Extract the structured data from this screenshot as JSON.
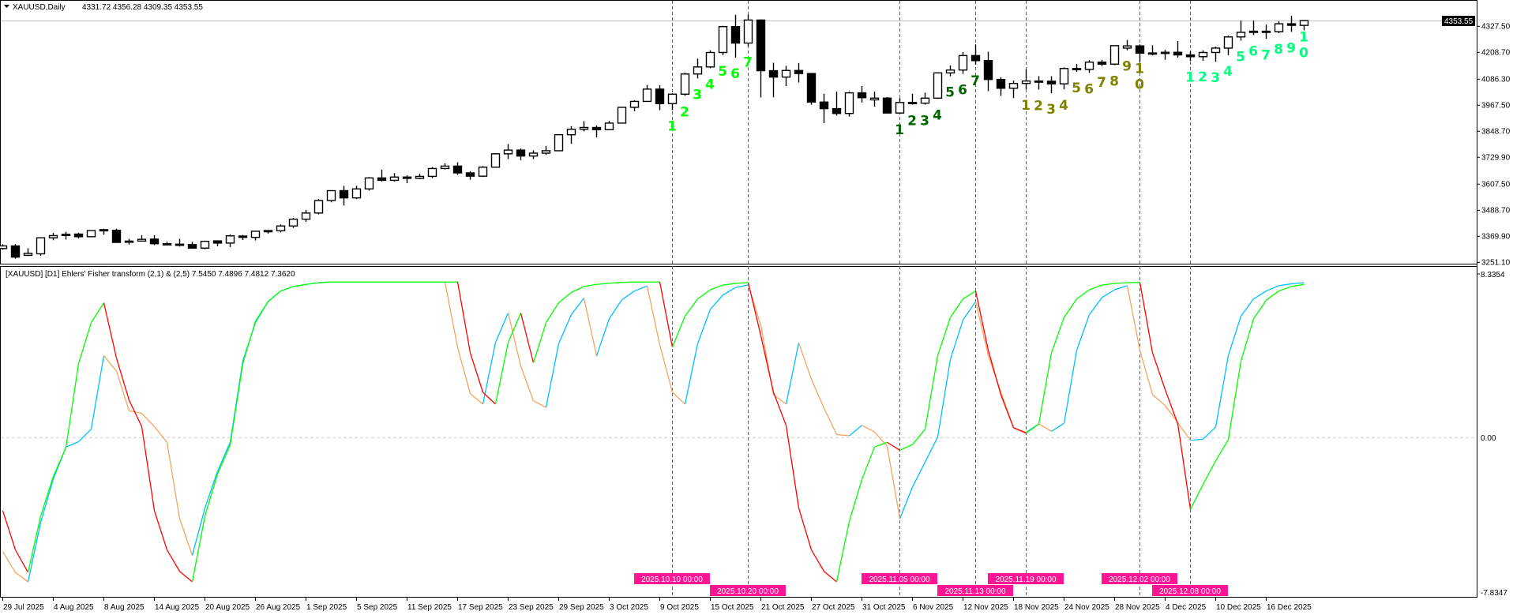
{
  "header": {
    "menu_icon": "triangle-down-icon",
    "symbol_timeframe": "XAUUSD,Daily",
    "ohlc": "4331.72 4356.28 4309.35 4353.55"
  },
  "indicator": {
    "title": "[XAUUSD] [D1] Ehlers' Fisher transform (2,1) & (2,5) 7.5450 7.4896 7.4812 7.3620"
  },
  "price_axis": {
    "current_price": "4353.55",
    "ticks": [
      "4327.50",
      "4208.70",
      "4086.30",
      "3967.50",
      "3848.70",
      "3729.90",
      "3607.50",
      "3488.70",
      "3369.90",
      "3251.10"
    ]
  },
  "indicator_axis": {
    "max": "8.3354",
    "zero": "0.00",
    "min": "-7.8347"
  },
  "time_axis": {
    "labels": [
      "29 Jul 2025",
      "4 Aug 2025",
      "8 Aug 2025",
      "14 Aug 2025",
      "20 Aug 2025",
      "26 Aug 2025",
      "1 Sep 2025",
      "5 Sep 2025",
      "11 Sep 2025",
      "17 Sep 2025",
      "23 Sep 2025",
      "29 Sep 2025",
      "3 Oct 2025",
      "9 Oct 2025",
      "15 Oct 2025",
      "21 Oct 2025",
      "27 Oct 2025",
      "31 Oct 2025",
      "6 Nov 2025",
      "12 Nov 2025",
      "18 Nov 2025",
      "24 Nov 2025",
      "28 Nov 2025",
      "4 Dec 2025",
      "10 Dec 2025",
      "16 Dec 2025"
    ],
    "label_every_bars": 4
  },
  "vertical_markers": [
    {
      "bar": 53,
      "label": "2025.10.10 00:00"
    },
    {
      "bar": 59,
      "label": "2025.10.20 00:00"
    },
    {
      "bar": 71,
      "label": "2025.11.05 00:00"
    },
    {
      "bar": 77,
      "label": "2025.11.13 00:00"
    },
    {
      "bar": 81,
      "label": "2025.11.19 00:00"
    },
    {
      "bar": 90,
      "label": "2025.12.02 00:00"
    },
    {
      "bar": 94,
      "label": "2025.12.08 00:00"
    }
  ],
  "count_sequences": [
    {
      "color": "#00ff00",
      "start_bar": 53,
      "labels": [
        "1",
        "2",
        "3",
        "4",
        "5",
        "6",
        "7"
      ]
    },
    {
      "color": "#006400",
      "start_bar": 71,
      "labels": [
        "1",
        "2",
        "3",
        "4",
        "5",
        "6",
        "7"
      ]
    },
    {
      "color": "#808000",
      "start_bar": 81,
      "labels": [
        "1",
        "2",
        "3",
        "4",
        "5",
        "6",
        "7",
        "8",
        "9",
        "10"
      ]
    },
    {
      "color": "#00ff7f",
      "start_bar": 94,
      "labels": [
        "1",
        "2",
        "3",
        "4",
        "5",
        "6",
        "7",
        "8",
        "9",
        "10"
      ]
    }
  ],
  "colors": {
    "bull_body": "#ffffff",
    "bear_body": "#000000",
    "marker": "#e6197a",
    "marker_label_bg": "#ff1493",
    "fast_up": "#00ff00",
    "fast_down": "#ff0000",
    "slow_up": "#00bfff",
    "slow_down": "#f4a460"
  },
  "chart_data": [
    {
      "type": "candlestick",
      "title": "XAUUSD,Daily",
      "x_start": "29 Jul 2025",
      "x_end": "19 Dec 2025",
      "ylim": [
        3251.1,
        4353.55
      ],
      "ohlc": [
        [
          3314,
          3334,
          3309,
          3326
        ],
        [
          3326,
          3334,
          3268,
          3275
        ],
        [
          3283,
          3315,
          3280,
          3292
        ],
        [
          3290,
          3363,
          3281,
          3363
        ],
        [
          3363,
          3385,
          3352,
          3373
        ],
        [
          3378,
          3390,
          3355,
          3379
        ],
        [
          3380,
          3386,
          3360,
          3368
        ],
        [
          3368,
          3398,
          3366,
          3396
        ],
        [
          3400,
          3404,
          3377,
          3397
        ],
        [
          3397,
          3404,
          3341,
          3342
        ],
        [
          3346,
          3358,
          3332,
          3348
        ],
        [
          3348,
          3375,
          3348,
          3356
        ],
        [
          3357,
          3375,
          3330,
          3336
        ],
        [
          3336,
          3346,
          3332,
          3336
        ],
        [
          3334,
          3358,
          3323,
          3332
        ],
        [
          3332,
          3345,
          3315,
          3316
        ],
        [
          3316,
          3350,
          3311,
          3347
        ],
        [
          3349,
          3351,
          3324,
          3339
        ],
        [
          3339,
          3379,
          3321,
          3372
        ],
        [
          3371,
          3376,
          3353,
          3365
        ],
        [
          3365,
          3393,
          3351,
          3393
        ],
        [
          3396,
          3398,
          3382,
          3394
        ],
        [
          3395,
          3424,
          3388,
          3417
        ],
        [
          3417,
          3454,
          3408,
          3448
        ],
        [
          3448,
          3490,
          3436,
          3476
        ],
        [
          3476,
          3540,
          3470,
          3533
        ],
        [
          3533,
          3578,
          3525,
          3578
        ],
        [
          3578,
          3600,
          3510,
          3545
        ],
        [
          3545,
          3600,
          3540,
          3586
        ],
        [
          3586,
          3640,
          3578,
          3636
        ],
        [
          3636,
          3674,
          3620,
          3625
        ],
        [
          3625,
          3658,
          3620,
          3640
        ],
        [
          3640,
          3648,
          3612,
          3634
        ],
        [
          3634,
          3655,
          3630,
          3643
        ],
        [
          3643,
          3685,
          3635,
          3679
        ],
        [
          3679,
          3703,
          3675,
          3690
        ],
        [
          3690,
          3707,
          3650,
          3659
        ],
        [
          3659,
          3667,
          3628,
          3644
        ],
        [
          3644,
          3690,
          3640,
          3685
        ],
        [
          3685,
          3749,
          3684,
          3746
        ],
        [
          3746,
          3791,
          3722,
          3763
        ],
        [
          3763,
          3770,
          3717,
          3736
        ],
        [
          3736,
          3762,
          3722,
          3749
        ],
        [
          3749,
          3782,
          3741,
          3760
        ],
        [
          3760,
          3834,
          3758,
          3833
        ],
        [
          3833,
          3872,
          3792,
          3858
        ],
        [
          3858,
          3895,
          3848,
          3866
        ],
        [
          3866,
          3875,
          3821,
          3856
        ],
        [
          3856,
          3896,
          3855,
          3886
        ],
        [
          3886,
          3960,
          3885,
          3958
        ],
        [
          3958,
          3990,
          3940,
          3985
        ],
        [
          3985,
          4060,
          3984,
          4041
        ],
        [
          4041,
          4059,
          3945,
          3975
        ],
        [
          3975,
          4022,
          3945,
          4018
        ],
        [
          4018,
          4116,
          4010,
          4110
        ],
        [
          4110,
          4180,
          4090,
          4142
        ],
        [
          4142,
          4218,
          4136,
          4208
        ],
        [
          4208,
          4330,
          4196,
          4326
        ],
        [
          4326,
          4380,
          4185,
          4251
        ],
        [
          4251,
          4381,
          4236,
          4356
        ],
        [
          4356,
          4359,
          4003,
          4125
        ],
        [
          4125,
          4161,
          4004,
          4096
        ],
        [
          4096,
          4147,
          4055,
          4126
        ],
        [
          4126,
          4160,
          4071,
          4112
        ],
        [
          4112,
          4115,
          3970,
          3982
        ],
        [
          3982,
          4020,
          3886,
          3952
        ],
        [
          3952,
          4030,
          3920,
          3930
        ],
        [
          3930,
          4030,
          3916,
          4024
        ],
        [
          4024,
          4055,
          3980,
          4002
        ],
        [
          3992,
          4030,
          3961,
          4000
        ],
        [
          4000,
          4005,
          3930,
          3932
        ],
        [
          3932,
          4000,
          3929,
          3980
        ],
        [
          3980,
          4020,
          3970,
          3977
        ],
        [
          3977,
          4025,
          3970,
          4000
        ],
        [
          4000,
          4117,
          3996,
          4115
        ],
        [
          4115,
          4149,
          4100,
          4128
        ],
        [
          4128,
          4210,
          4110,
          4194
        ],
        [
          4194,
          4245,
          4153,
          4171
        ],
        [
          4171,
          4211,
          4032,
          4085
        ],
        [
          4085,
          4095,
          4010,
          4045
        ],
        [
          4045,
          4080,
          4000,
          4067
        ],
        [
          4067,
          4132,
          4040,
          4078
        ],
        [
          4078,
          4100,
          4039,
          4077
        ],
        [
          4077,
          4100,
          4022,
          4065
        ],
        [
          4065,
          4140,
          4040,
          4135
        ],
        [
          4135,
          4156,
          4120,
          4131
        ],
        [
          4131,
          4173,
          4115,
          4164
        ],
        [
          4164,
          4175,
          4145,
          4155
        ],
        [
          4155,
          4240,
          4150,
          4239
        ],
        [
          4228,
          4265,
          4218,
          4238
        ],
        [
          4238,
          4245,
          4165,
          4205
        ],
        [
          4205,
          4241,
          4195,
          4206
        ],
        [
          4206,
          4220,
          4175,
          4209
        ],
        [
          4209,
          4260,
          4185,
          4197
        ],
        [
          4197,
          4215,
          4169,
          4189
        ],
        [
          4189,
          4218,
          4170,
          4208
        ],
        [
          4208,
          4235,
          4166,
          4228
        ],
        [
          4228,
          4285,
          4196,
          4279
        ],
        [
          4279,
          4353,
          4262,
          4300
        ],
        [
          4300,
          4353,
          4288,
          4305
        ],
        [
          4305,
          4335,
          4270,
          4303
        ],
        [
          4303,
          4350,
          4296,
          4339
        ],
        [
          4339,
          4375,
          4302,
          4332
        ],
        [
          4331.72,
          4356.28,
          4309.35,
          4353.55
        ]
      ]
    },
    {
      "type": "line",
      "title": "[XAUUSD] [D1] Ehlers' Fisher transform (2,1) & (2,5)",
      "ylim": [
        -7.8347,
        8.3354
      ],
      "zero_line": true,
      "series": [
        {
          "values": [
            -3.58,
            -5.5,
            -6.6,
            -3.84,
            -1.9,
            -0.49,
            3.63,
            5.63,
            6.6,
            3.89,
            1.83,
            0.54,
            -3.58,
            -5.5,
            -6.55,
            -7.06,
            -3.84,
            -1.78,
            -0.36,
            3.63,
            5.7,
            6.66,
            7.18,
            7.4,
            7.5,
            7.58,
            7.62,
            7.62,
            7.62,
            7.62,
            7.62,
            7.62,
            7.62,
            7.62,
            7.62,
            7.62,
            7.62,
            4.15,
            2.22,
            1.64,
            4.66,
            6.1,
            3.66,
            5.63,
            6.6,
            7.11,
            7.4,
            7.5,
            7.56,
            7.6,
            7.62,
            7.62,
            7.62,
            4.43,
            5.95,
            6.79,
            7.24,
            7.47,
            7.55,
            7.59,
            4.99,
            2.22,
            0.6,
            -3.45,
            -5.5,
            -6.55,
            -7.06,
            -4.1,
            -2.04,
            -0.46,
            -0.23,
            -0.62,
            -0.34,
            0.41,
            4.02,
            5.89,
            6.79,
            7.18,
            4.28,
            2.09,
            0.48,
            0.22,
            0.67,
            4.15,
            5.89,
            6.79,
            7.24,
            7.47,
            7.55,
            7.58,
            7.6,
            4.15,
            2.35,
            0.67,
            -3.52,
            -2.29,
            -1.13,
            -0.1,
            3.76,
            5.82,
            6.73,
            7.18,
            7.4,
            7.5
          ],
          "up_color": "#00ff00",
          "down_color": "#ff0000"
        },
        {
          "values": [
            -5.58,
            -6.6,
            -7.06,
            -4.16,
            -2.03,
            -0.46,
            -0.2,
            0.41,
            4.02,
            3.25,
            1.31,
            1.19,
            0.54,
            -0.23,
            -3.97,
            -5.77,
            -3.45,
            -1.65,
            -0.23,
            3.76,
            5.63,
            6.66,
            7.18,
            7.4,
            7.5,
            7.58,
            7.62,
            7.62,
            7.62,
            7.62,
            7.62,
            7.62,
            7.62,
            7.62,
            7.62,
            7.62,
            4.41,
            2.15,
            1.64,
            4.66,
            6.1,
            3.5,
            1.8,
            1.48,
            4.6,
            6.02,
            6.83,
            4.0,
            5.82,
            6.75,
            7.18,
            7.42,
            4.54,
            2.22,
            1.64,
            4.6,
            6.28,
            6.98,
            7.35,
            7.47,
            5.5,
            2.09,
            1.64,
            4.64,
            2.86,
            1.44,
            0.15,
            0.09,
            0.6,
            0.28,
            -0.43,
            -3.97,
            -2.42,
            -1.2,
            0.03,
            3.83,
            5.76,
            6.66,
            4.02,
            2.22,
            0.48,
            0.26,
            0.67,
            0.31,
            0.7,
            4.28,
            6.02,
            6.86,
            7.24,
            7.44,
            4.28,
            2.11,
            1.57,
            0.73,
            -0.13,
            -0.08,
            0.52,
            4.02,
            5.95,
            6.79,
            7.18,
            7.44,
            7.53,
            7.58
          ],
          "up_color": "#00bfff",
          "down_color": "#f4a460"
        }
      ]
    }
  ]
}
